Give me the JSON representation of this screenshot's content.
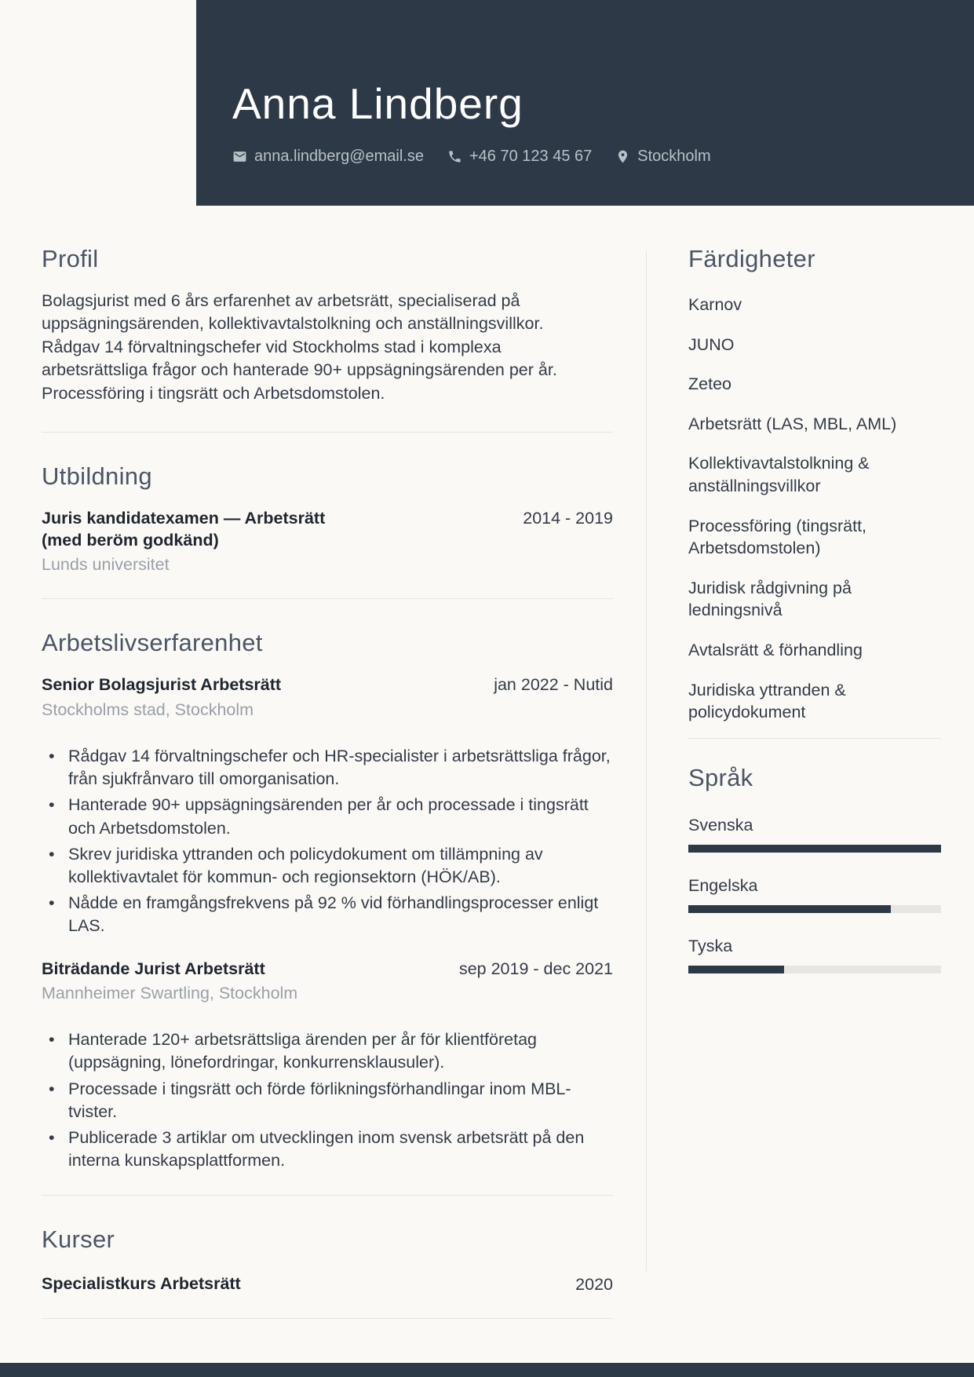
{
  "header": {
    "name": "Anna Lindberg",
    "contact": {
      "email": "anna.lindberg@email.se",
      "phone": "+46 70 123 45 67",
      "location": "Stockholm"
    }
  },
  "left": {
    "profile": {
      "title": "Profil",
      "text": "Bolagsjurist med 6 års erfarenhet av arbetsrätt, specialiserad på uppsägningsärenden, kollektivavtalstolkning och anställningsvillkor. Rådgav 14 förvaltningschefer vid Stockholms stad i komplexa arbetsrättsliga frågor och hanterade 90+ uppsägningsärenden per år. Processföring i tingsrätt och Arbetsdomstolen."
    },
    "education": {
      "title": "Utbildning",
      "items": [
        {
          "degree_lines": [
            "Juris kandidatexamen — Arbetsrätt",
            "(med beröm godkänd)"
          ],
          "school": "Lunds universitet",
          "dates": "2014 - 2019"
        }
      ]
    },
    "experience": {
      "title": "Arbetslivserfarenhet",
      "items": [
        {
          "role": "Senior Bolagsjurist Arbetsrätt",
          "company": "Stockholms stad, Stockholm",
          "dates": "jan 2022 - Nutid",
          "bullets": [
            "Rådgav 14 förvaltningschefer och HR-specialister i arbetsrättsliga frågor, från sjukfrånvaro till omorganisation.",
            "Hanterade 90+ uppsägningsärenden per år och processade i tingsrätt och Arbetsdomstolen.",
            "Skrev juridiska yttranden och policydokument om tillämpning av kollektivavtalet för kommun- och regionsektorn (HÖK/AB).",
            "Nådde en framgångsfrekvens på 92 % vid förhandlingsprocesser enligt LAS."
          ]
        },
        {
          "role": "Biträdande Jurist Arbetsrätt",
          "company": "Mannheimer Swartling, Stockholm",
          "dates": "sep 2019 - dec 2021",
          "bullets": [
            "Hanterade 120+ arbetsrättsliga ärenden per år för klientföretag (uppsägning, lönefordringar, konkurrensklausuler).",
            "Processade i tingsrätt och förde förlikningsförhandlingar inom MBL-tvister.",
            "Publicerade 3 artiklar om utvecklingen inom svensk arbetsrätt på den interna kunskapsplattformen."
          ]
        }
      ]
    },
    "courses": {
      "title": "Kurser",
      "items": [
        {
          "name": "Specialistkurs Arbetsrätt",
          "dates": "2020"
        }
      ]
    }
  },
  "right": {
    "skills": {
      "title": "Färdigheter",
      "items": [
        "Karnov",
        "JUNO",
        "Zeteo",
        "Arbetsrätt (LAS, MBL, AML)",
        "Kollektivavtalstolkning & anställningsvillkor",
        "Processföring (tingsrätt, Arbetsdomstolen)",
        "Juridisk rådgivning på ledningsnivå",
        "Avtalsrätt & förhandling",
        "Juridiska yttranden & policydokument"
      ]
    },
    "languages": {
      "title": "Språk",
      "items": [
        {
          "name": "Svenska",
          "level": 100
        },
        {
          "name": "Engelska",
          "level": 80
        },
        {
          "name": "Tyska",
          "level": 38
        }
      ]
    }
  },
  "colors": {
    "accent": "#2e3947",
    "background": "#faf9f6",
    "heading": "#4b5565",
    "muted": "#9aa0a8",
    "divider": "#e7e4e1",
    "bar_track": "#e9e6e2"
  }
}
